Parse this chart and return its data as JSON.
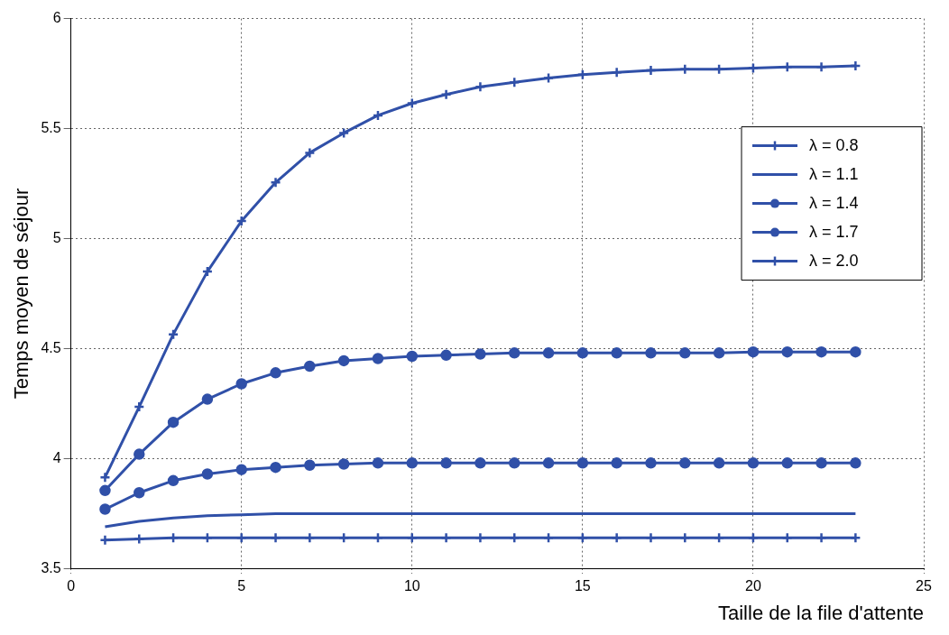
{
  "chart_data": {
    "type": "line",
    "xlabel": "Taille de la file d'attente",
    "ylabel": "Temps moyen de séjour",
    "x": [
      1,
      2,
      3,
      4,
      5,
      6,
      7,
      8,
      9,
      10,
      11,
      12,
      13,
      14,
      15,
      16,
      17,
      18,
      19,
      20,
      21,
      22,
      23
    ],
    "xlim": [
      0,
      25
    ],
    "xticks": [
      0,
      5,
      10,
      15,
      20,
      25
    ],
    "ylim": [
      3.5,
      6
    ],
    "yticks": [
      3.5,
      4,
      4.5,
      5,
      5.5,
      6
    ],
    "grid": true,
    "legend": "top right",
    "line_style": "solid",
    "series": [
      {
        "name": "λ = 0.8",
        "color": "#3050a8",
        "marker": "cross",
        "values": [
          3.63,
          3.635,
          3.64,
          3.64,
          3.64,
          3.64,
          3.64,
          3.64,
          3.64,
          3.64,
          3.64,
          3.64,
          3.64,
          3.64,
          3.64,
          3.64,
          3.64,
          3.64,
          3.64,
          3.64,
          3.64,
          3.64,
          3.64
        ]
      },
      {
        "name": "λ = 1.1",
        "color": "#3050a8",
        "marker": "none",
        "values": [
          3.69,
          3.715,
          3.73,
          3.74,
          3.745,
          3.75,
          3.75,
          3.75,
          3.75,
          3.75,
          3.75,
          3.75,
          3.75,
          3.75,
          3.75,
          3.75,
          3.75,
          3.75,
          3.75,
          3.75,
          3.75,
          3.75,
          3.75
        ]
      },
      {
        "name": "λ = 1.4",
        "color": "#3050a8",
        "marker": "circle",
        "values": [
          3.77,
          3.845,
          3.9,
          3.93,
          3.95,
          3.96,
          3.97,
          3.975,
          3.98,
          3.98,
          3.98,
          3.98,
          3.98,
          3.98,
          3.98,
          3.98,
          3.98,
          3.98,
          3.98,
          3.98,
          3.98,
          3.98,
          3.98
        ]
      },
      {
        "name": "λ = 1.7",
        "color": "#3050a8",
        "marker": "circle",
        "values": [
          3.855,
          4.02,
          4.165,
          4.27,
          4.34,
          4.39,
          4.42,
          4.445,
          4.455,
          4.465,
          4.47,
          4.475,
          4.48,
          4.48,
          4.48,
          4.48,
          4.48,
          4.48,
          4.48,
          4.485,
          4.485,
          4.485,
          4.485
        ]
      },
      {
        "name": "λ = 2.0",
        "color": "#3050a8",
        "marker": "cross",
        "values": [
          3.915,
          4.235,
          4.565,
          4.85,
          5.08,
          5.255,
          5.39,
          5.48,
          5.56,
          5.615,
          5.655,
          5.69,
          5.71,
          5.73,
          5.745,
          5.755,
          5.765,
          5.77,
          5.77,
          5.775,
          5.78,
          5.78,
          5.785
        ]
      }
    ]
  }
}
